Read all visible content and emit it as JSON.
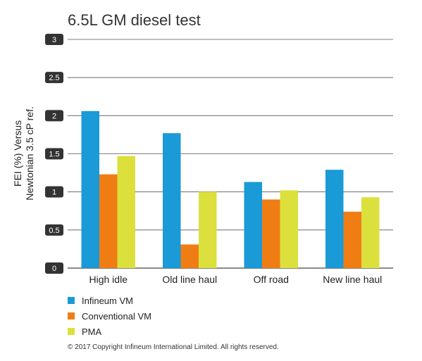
{
  "chart_data": {
    "type": "bar",
    "title": "6.5L GM diesel test",
    "ylabel_lines": [
      "FEI (%) Versus",
      "Newtonian 3.5 cP ref."
    ],
    "xlabel": "",
    "ylim": [
      0,
      3
    ],
    "yticks": [
      "0",
      "0.5",
      "1",
      "1.5",
      "2",
      "2.5",
      "3"
    ],
    "grid": true,
    "legend_position": "bottom-left",
    "categories": [
      "High idle",
      "Old line haul",
      "Off road",
      "New line haul"
    ],
    "series": [
      {
        "name": "Infineum VM",
        "color": "#1a9ad6",
        "values": [
          2.06,
          1.77,
          1.13,
          1.29
        ]
      },
      {
        "name": "Conventional VM",
        "color": "#f07d14",
        "values": [
          1.23,
          0.31,
          0.9,
          0.74
        ]
      },
      {
        "name": "PMA",
        "color": "#dbe03c",
        "values": [
          1.47,
          1.0,
          1.02,
          0.93
        ]
      }
    ]
  },
  "footer": "© 2017 Copyright Infineum International Limited. All rights reserved."
}
